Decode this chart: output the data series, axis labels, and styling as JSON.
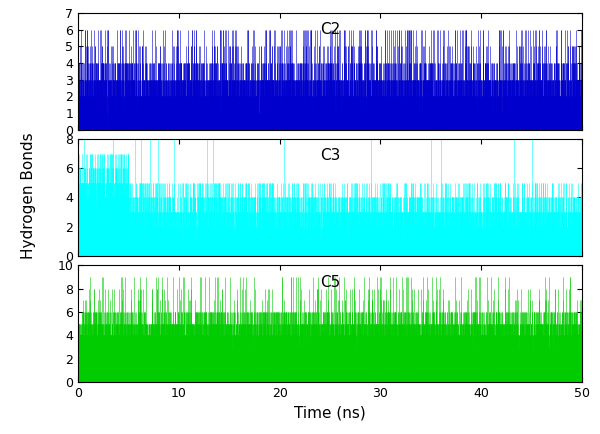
{
  "panels": [
    {
      "label": "C2",
      "color": "#0000CD",
      "ylim": [
        0,
        7
      ],
      "yticks": [
        0,
        1,
        2,
        3,
        4,
        5,
        6,
        7
      ],
      "seed": 42
    },
    {
      "label": "C3",
      "color": "#00FFFF",
      "ylim": [
        0,
        8
      ],
      "yticks": [
        0,
        2,
        4,
        6,
        8
      ],
      "seed": 123
    },
    {
      "label": "C5",
      "color": "#00CC00",
      "ylim": [
        0,
        10
      ],
      "yticks": [
        0,
        2,
        4,
        6,
        8,
        10
      ],
      "seed": 77
    }
  ],
  "xlabel": "Time (ns)",
  "ylabel": "Hydrogen Bonds",
  "xlim": [
    0,
    50
  ],
  "xticks": [
    0,
    10,
    20,
    30,
    40,
    50
  ],
  "n_points": 5000,
  "figsize": [
    6.0,
    4.34
  ],
  "dpi": 100
}
